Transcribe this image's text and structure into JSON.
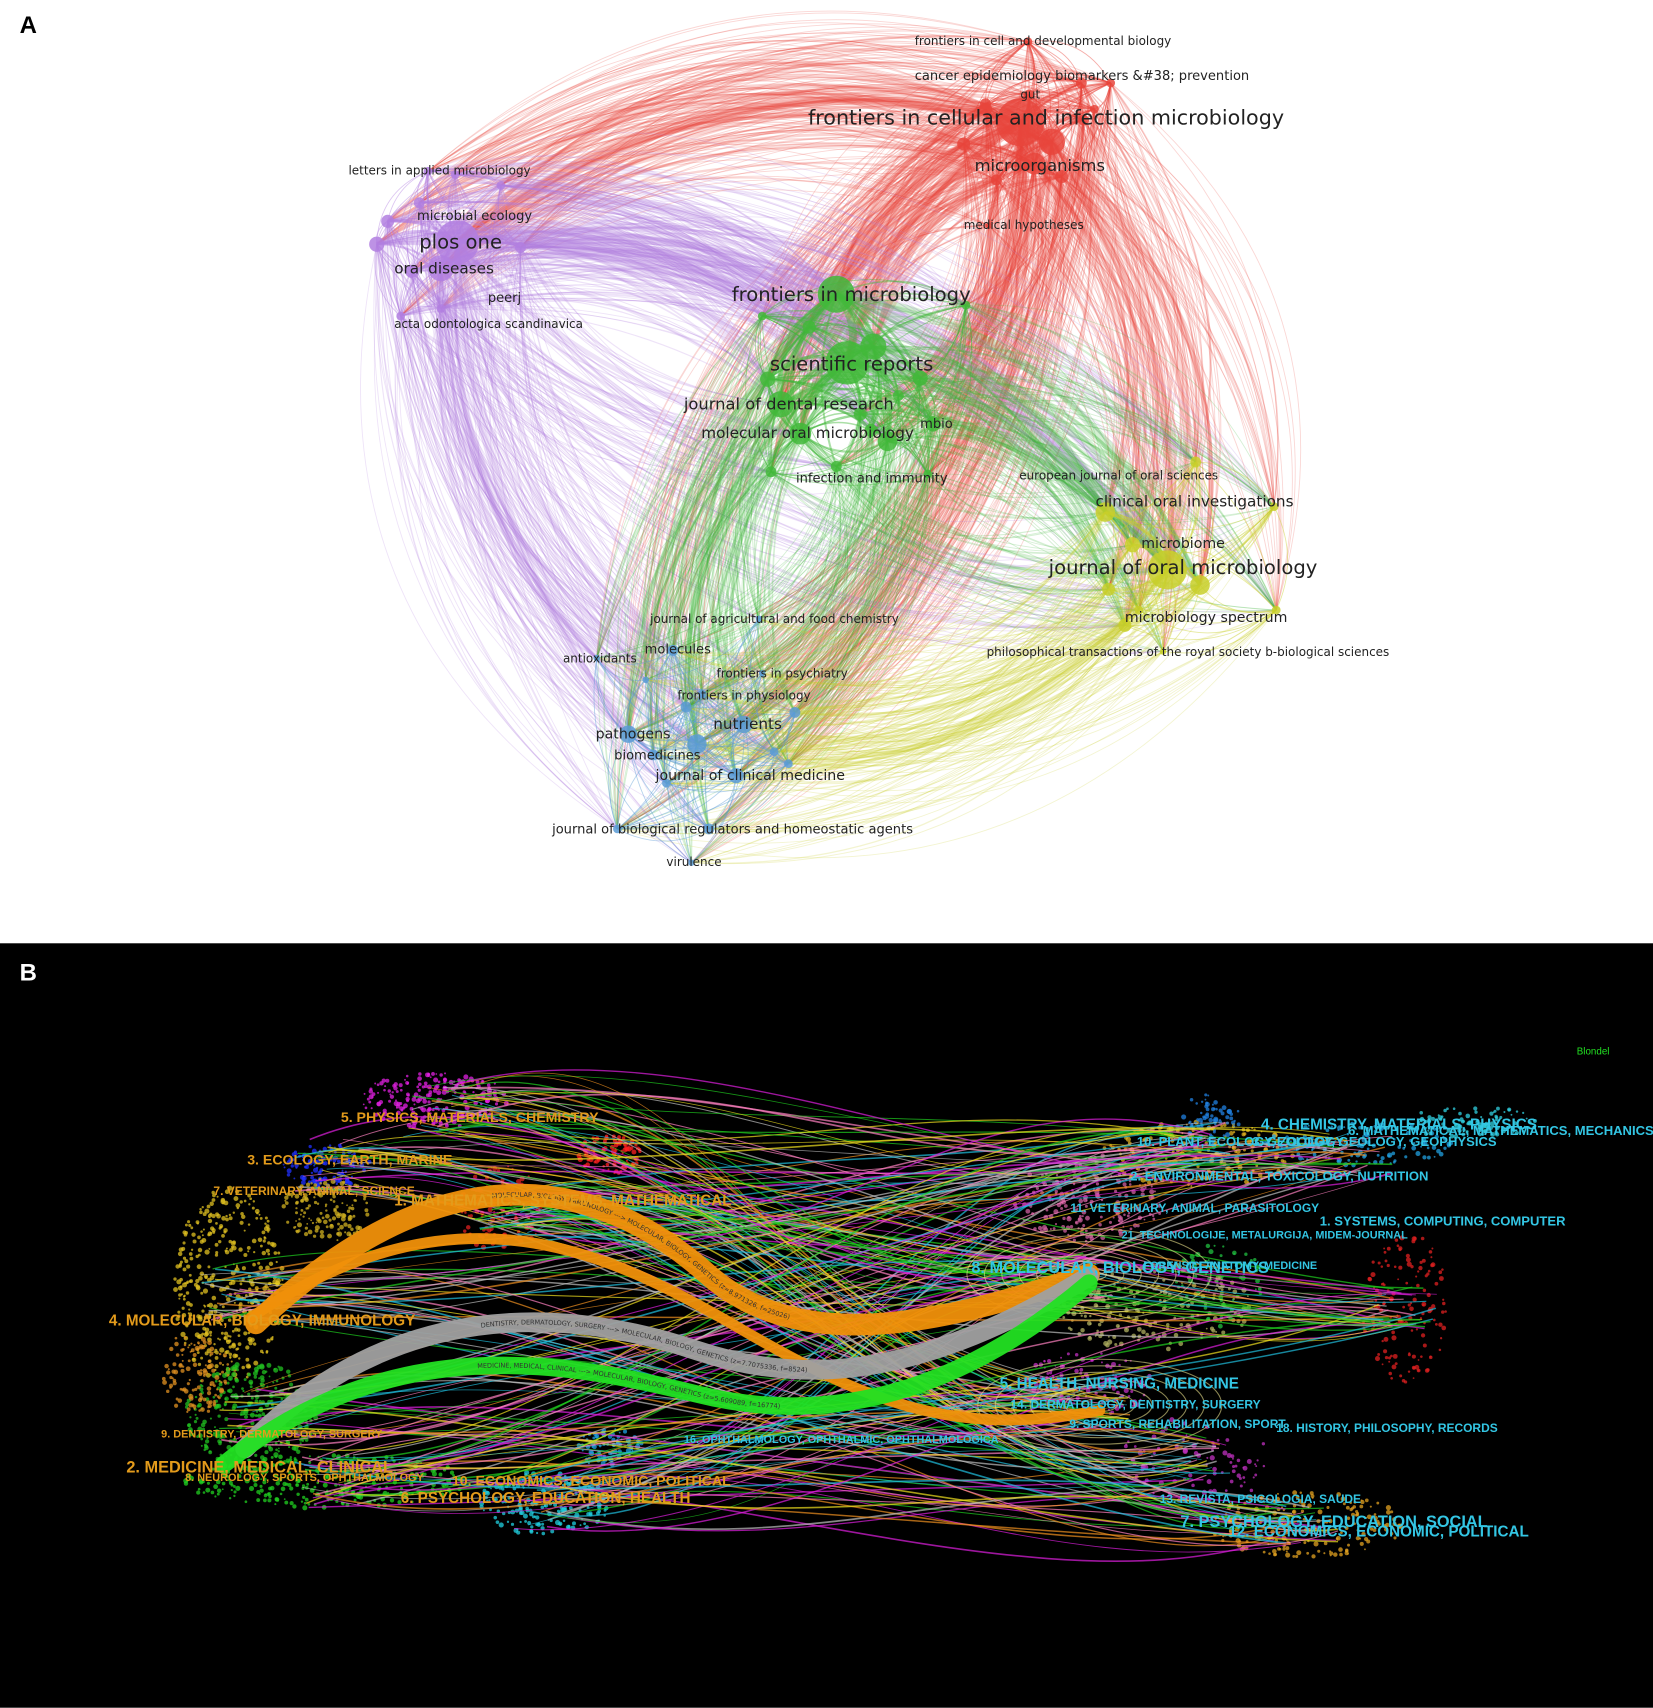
{
  "panel_a": {
    "label": "A",
    "clusters": [
      {
        "color": "#e8453c",
        "nodes": [
          "frontiers in cell and developmental biology",
          "cancer epidemiology biomarkers &#38; prevention",
          "gut",
          "frontiers in cellular and infection microbiology",
          "microorganisms",
          "medical hypotheses"
        ]
      },
      {
        "color": "#b27fe0",
        "nodes": [
          "letters in applied microbiology",
          "microbial ecology",
          "plos one",
          "oral diseases",
          "peerj",
          "acta odontologica scandinavica"
        ]
      },
      {
        "color": "#42b83a",
        "nodes": [
          "frontiers in microbiology",
          "scientific reports",
          "journal of dental research",
          "molecular oral microbiology",
          "mbio",
          "infection and immunity"
        ]
      },
      {
        "color": "#c8cf2a",
        "nodes": [
          "european journal of oral sciences",
          "clinical oral investigations",
          "microbiome",
          "journal of oral microbiology",
          "microbiology spectrum",
          "philosophical transactions of the royal society b-biological sciences"
        ]
      },
      {
        "color": "#5b9bd5",
        "nodes": [
          "journal of agricultural and food chemistry",
          "antioxidants",
          "molecules",
          "frontiers in psychiatry",
          "frontiers in physiology",
          "nutrients",
          "pathogens",
          "biomedicines",
          "journal of clinical medicine",
          "journal of biological regulators and homeostatic agents",
          "virulence"
        ]
      }
    ]
  },
  "panel_b": {
    "label": "B",
    "legend": "Blondel",
    "citing_color": "#e39b1b",
    "cited_color": "#33c6e4",
    "citing_labels": [
      "5. PHYSICS, MATERIALS, CHEMISTRY",
      "3. ECOLOGY, EARTH, MARINE",
      "7. VETERINARY, ANIMAL, SCIENCE",
      "1. MATHEMATICS, SYSTEMS, MATHEMATICAL",
      "4. MOLECULAR, BIOLOGY, IMMUNOLOGY",
      "9. DENTISTRY, DERMATOLOGY, SURGERY",
      "2. MEDICINE, MEDICAL, CLINICAL",
      "8. NEUROLOGY, SPORTS, OPHTHALMOLOGY",
      "10. ECONOMICS, ECONOMIC, POLITICAL",
      "6. PSYCHOLOGY, EDUCATION, HEALTH"
    ],
    "cited_labels": [
      "10. PLANT, ECOLOGY, ZOOLOGY",
      "3. GEOLOGY, GEOLOGY, GEOPHYSICS",
      "4. CHEMISTRY, MATERIALS, PHYSICS",
      "6. MATHEMATICAL, MATHEMATICS, MECHANICS",
      "2. ENVIRONMENTAL, TOXICOLOGY, NUTRITION",
      "11. VETERINARY, ANIMAL, PARASITOLOGY",
      "1. SYSTEMS, COMPUTING, COMPUTER",
      "21. TECHNOLOGIJE, METALURGIJA, MIDEM-JOURNAL",
      "8. MOLECULAR, BIOLOGY, GENETICS",
      "FORENSIC, ANATOMY, MEDICINE",
      "5. HEALTH, NURSING, MEDICINE",
      "14. DERMATOLOGY, DENTISTRY, SURGERY",
      "9. SPORTS, REHABILITATION, SPORT",
      "18. HISTORY, PHILOSOPHY, RECORDS",
      "16. OPHTHALMOLOGY, OPHTHALMIC, OPHTHALMOLOGICA",
      "13. REVISTA, PSICOLOGIA, SAUDE",
      "7. PSYCHOLOGY, EDUCATION, SOCIAL",
      "12. ECONOMICS, ECONOMIC, POLITICAL"
    ],
    "link_labels": [
      "MOLECULAR, BIOLOGY, IMMUNOLOGY ---> MOLECULAR, BIOLOGY, GENETICS (z=8.971326, f=25026)",
      "DENTISTRY, DERMATOLOGY, SURGERY ---> MOLECULAR, BIOLOGY, GENETICS (z=7.7075336, f=8524)",
      "MEDICINE, MEDICAL, CLINICAL ---> MOLECULAR, BIOLOGY, GENETICS (z=5.609089, f=16774)"
    ]
  }
}
